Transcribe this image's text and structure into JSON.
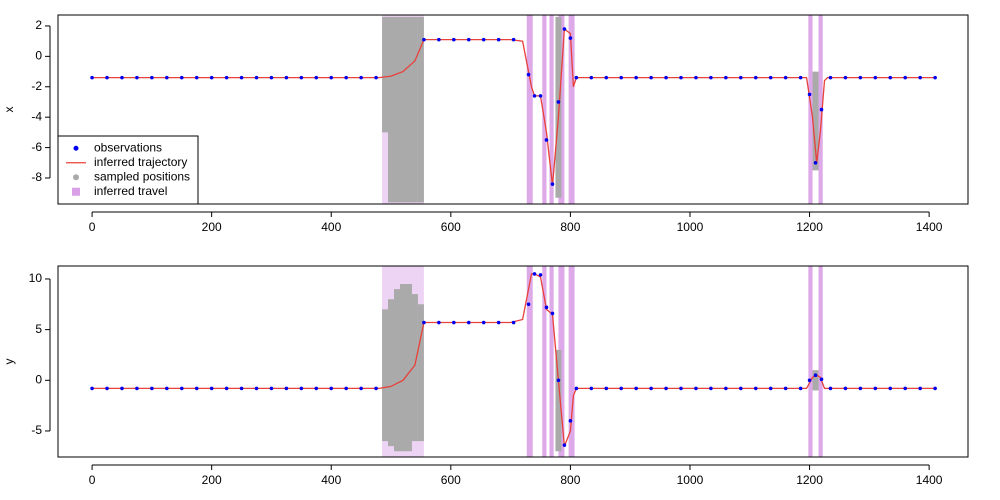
{
  "chart_data": [
    {
      "type": "line",
      "y_label": "x",
      "legend": "bottomleft",
      "xlim": [
        -57,
        1465
      ],
      "xticks": [
        0,
        200,
        400,
        600,
        800,
        1000,
        1200,
        1400
      ],
      "ylim": [
        -9.71,
        2.72
      ],
      "yticks": [
        -8,
        -6,
        -4,
        -2,
        0,
        2
      ],
      "series": [
        {
          "name": "observations",
          "kind": "points",
          "color": "#0000ee",
          "x": [
            0,
            25,
            50,
            75,
            100,
            125,
            150,
            175,
            200,
            225,
            250,
            275,
            300,
            325,
            350,
            375,
            400,
            425,
            450,
            475,
            555,
            580,
            605,
            630,
            655,
            680,
            705,
            730,
            740,
            750,
            760,
            770,
            780,
            790,
            800,
            810,
            835,
            860,
            885,
            910,
            935,
            960,
            985,
            1010,
            1035,
            1060,
            1085,
            1110,
            1135,
            1160,
            1185,
            1200,
            1210,
            1220,
            1235,
            1260,
            1285,
            1310,
            1335,
            1360,
            1385,
            1410
          ],
          "values": [
            -1.4,
            -1.4,
            -1.4,
            -1.4,
            -1.4,
            -1.4,
            -1.4,
            -1.4,
            -1.4,
            -1.4,
            -1.4,
            -1.4,
            -1.4,
            -1.4,
            -1.4,
            -1.4,
            -1.4,
            -1.4,
            -1.4,
            -1.4,
            1.1,
            1.1,
            1.1,
            1.1,
            1.1,
            1.1,
            1.1,
            -1.2,
            -2.6,
            -2.6,
            -5.5,
            -8.4,
            -3,
            1.8,
            1.2,
            -1.4,
            -1.4,
            -1.4,
            -1.4,
            -1.4,
            -1.4,
            -1.4,
            -1.4,
            -1.4,
            -1.4,
            -1.4,
            -1.4,
            -1.4,
            -1.4,
            -1.4,
            -1.4,
            -2.5,
            -7,
            -3.5,
            -1.4,
            -1.4,
            -1.4,
            -1.4,
            -1.4,
            -1.4,
            -1.4,
            -1.4
          ]
        },
        {
          "name": "inferred trajectory",
          "kind": "line",
          "color": "#e8403a",
          "x": [
            0,
            480,
            500,
            520,
            540,
            555,
            700,
            720,
            735,
            740,
            750,
            760,
            770,
            780,
            790,
            800,
            805,
            810,
            1195,
            1205,
            1212,
            1218,
            1225,
            1230,
            1410
          ],
          "values": [
            -1.4,
            -1.4,
            -1.3,
            -1.0,
            -0.3,
            1.1,
            1.1,
            1.0,
            -2.0,
            -2.6,
            -2.6,
            -5,
            -8.5,
            -4,
            1.8,
            1.5,
            -2,
            -1.4,
            -1.4,
            -4,
            -7,
            -5,
            -1.6,
            -1.4,
            -1.4
          ]
        },
        {
          "name": "sampled positions",
          "kind": "ranges",
          "color": "#aaaaaa",
          "x": [
            490,
            500,
            510,
            520,
            530,
            540,
            550,
            780,
            1210
          ],
          "low": [
            -5,
            -9.6,
            -9.6,
            -9.6,
            -9.6,
            -9.6,
            -9.6,
            -9.3,
            -7.5
          ],
          "high": [
            2.6,
            2.6,
            2.6,
            2.6,
            2.6,
            2.6,
            2.6,
            2.6,
            -1
          ]
        },
        {
          "name": "inferred travel",
          "kind": "bands",
          "color": "#d9a0e6",
          "start": [
            485,
            727,
            753,
            765,
            780,
            797,
            1198,
            1215
          ],
          "end": [
            555,
            737,
            760,
            772,
            790,
            807,
            1205,
            1222
          ]
        }
      ]
    },
    {
      "type": "line",
      "y_label": "y",
      "xlim": [
        -57,
        1465
      ],
      "xticks": [
        0,
        200,
        400,
        600,
        800,
        1000,
        1200,
        1400
      ],
      "ylim": [
        -7.57,
        11.28
      ],
      "yticks": [
        -5,
        0,
        5,
        10
      ],
      "series": [
        {
          "name": "observations",
          "kind": "points",
          "color": "#0000ee",
          "x": [
            0,
            25,
            50,
            75,
            100,
            125,
            150,
            175,
            200,
            225,
            250,
            275,
            300,
            325,
            350,
            375,
            400,
            425,
            450,
            475,
            555,
            580,
            605,
            630,
            655,
            680,
            705,
            730,
            740,
            750,
            760,
            770,
            780,
            790,
            800,
            810,
            835,
            860,
            885,
            910,
            935,
            960,
            985,
            1010,
            1035,
            1060,
            1085,
            1110,
            1135,
            1160,
            1185,
            1200,
            1210,
            1220,
            1235,
            1260,
            1285,
            1310,
            1335,
            1360,
            1385,
            1410
          ],
          "values": [
            -0.8,
            -0.8,
            -0.8,
            -0.8,
            -0.8,
            -0.8,
            -0.8,
            -0.8,
            -0.8,
            -0.8,
            -0.8,
            -0.8,
            -0.8,
            -0.8,
            -0.8,
            -0.8,
            -0.8,
            -0.8,
            -0.8,
            -0.8,
            5.7,
            5.7,
            5.7,
            5.7,
            5.7,
            5.7,
            5.7,
            7.5,
            10.5,
            10.4,
            7.2,
            6.6,
            0,
            -6.4,
            -4,
            -0.8,
            -0.8,
            -0.8,
            -0.8,
            -0.8,
            -0.8,
            -0.8,
            -0.8,
            -0.8,
            -0.8,
            -0.8,
            -0.8,
            -0.8,
            -0.8,
            -0.8,
            -0.8,
            0,
            0.5,
            0.1,
            -0.8,
            -0.8,
            -0.8,
            -0.8,
            -0.8,
            -0.8,
            -0.8,
            -0.8
          ]
        },
        {
          "name": "inferred trajectory",
          "kind": "line",
          "color": "#e8403a",
          "x": [
            0,
            480,
            500,
            520,
            540,
            555,
            700,
            720,
            735,
            740,
            750,
            760,
            770,
            780,
            790,
            800,
            805,
            810,
            1195,
            1205,
            1212,
            1218,
            1225,
            1230,
            1410
          ],
          "values": [
            -0.8,
            -0.8,
            -0.6,
            0,
            1.5,
            5.7,
            5.7,
            6.0,
            10.5,
            10.5,
            10.2,
            7,
            6.5,
            0,
            -6.5,
            -5,
            -1.5,
            -0.8,
            -0.8,
            0.3,
            0.5,
            0.3,
            -0.8,
            -0.8,
            -0.8
          ]
        },
        {
          "name": "sampled positions",
          "kind": "ranges",
          "color": "#aaaaaa",
          "x": [
            490,
            500,
            510,
            520,
            530,
            540,
            550,
            780,
            1210
          ],
          "low": [
            -6,
            -6.5,
            -7,
            -7,
            -7,
            -6,
            -6,
            -7,
            -1
          ],
          "high": [
            7,
            8,
            9,
            9.5,
            9.5,
            8.5,
            7.5,
            3,
            1
          ]
        },
        {
          "name": "inferred travel",
          "kind": "bands",
          "color": "#d9a0e6",
          "start": [
            485,
            727,
            753,
            765,
            780,
            797,
            1198,
            1215
          ],
          "end": [
            555,
            737,
            760,
            772,
            790,
            807,
            1205,
            1222
          ]
        }
      ]
    }
  ]
}
